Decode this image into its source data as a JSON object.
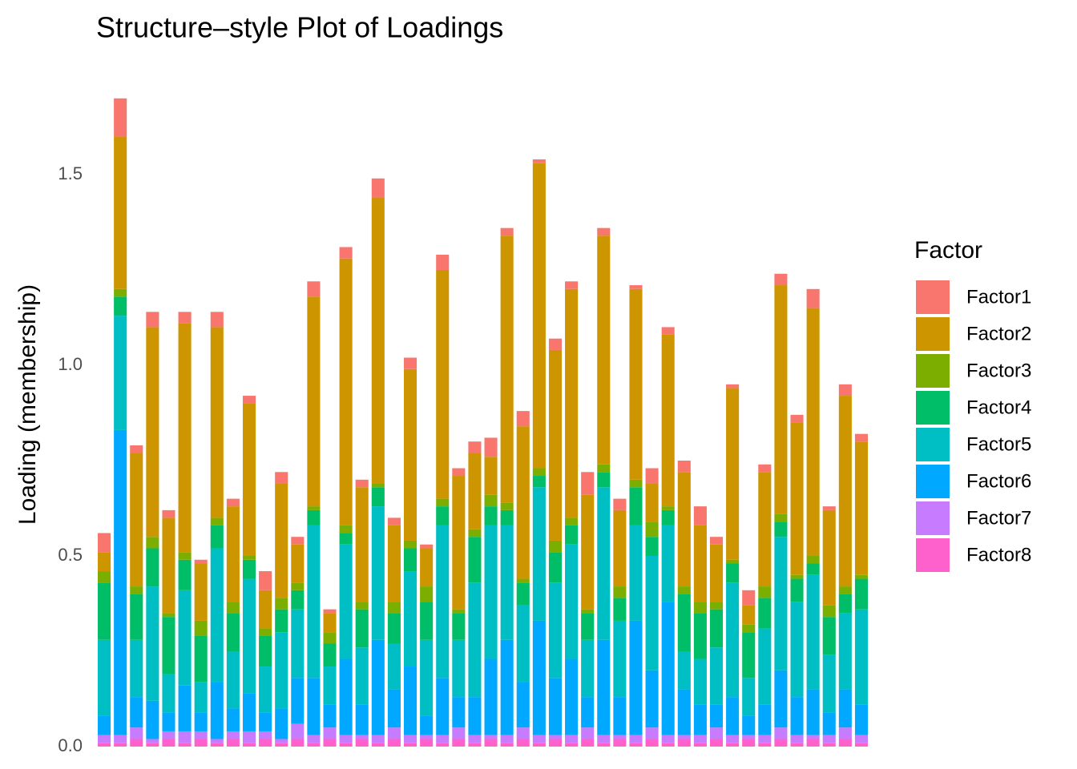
{
  "chart_data": {
    "type": "stacked_bar",
    "title": "Structure–style Plot of Loadings",
    "y_label": "Loading (membership)",
    "legend_title": "Factor",
    "legend_position": "right",
    "grid": false,
    "categories": [
      null,
      null,
      null,
      null,
      null,
      null,
      null,
      null,
      null,
      null,
      null,
      null,
      null,
      null,
      null,
      null,
      null,
      null,
      null,
      null,
      null,
      null,
      null,
      null,
      null,
      null,
      null,
      null,
      null,
      null,
      null,
      null,
      null,
      null,
      null,
      null,
      null,
      null,
      null,
      null,
      null,
      null,
      null,
      null,
      null,
      null,
      null,
      null
    ],
    "ylim": [
      0,
      1.75
    ],
    "yticks": [
      {
        "value": 0,
        "label": "0.0"
      },
      0.5,
      {
        "value": 1,
        "label": "1.0"
      },
      1.5
    ],
    "series": [
      {
        "name": "Factor1",
        "color": "#F8766D",
        "values": [
          0.05,
          0.1,
          0.02,
          0.04,
          0.02,
          0.03,
          0.01,
          0.04,
          0.02,
          0.02,
          0.05,
          0.03,
          0.02,
          0.04,
          0.01,
          0.03,
          0.02,
          0.05,
          0.02,
          0.03,
          0.01,
          0.04,
          0.02,
          0.03,
          0.05,
          0.02,
          0.04,
          0.01,
          0.03,
          0.02,
          0.06,
          0.02,
          0.03,
          0.01,
          0.04,
          0.02,
          0.03,
          0.05,
          0.02,
          0.01,
          0.04,
          0.02,
          0.03,
          0.02,
          0.05,
          0.01,
          0.03,
          0.02
        ]
      },
      {
        "name": "Factor2",
        "color": "#CD9600",
        "values": [
          0.05,
          0.4,
          0.35,
          0.55,
          0.25,
          0.6,
          0.15,
          0.5,
          0.25,
          0.4,
          0.1,
          0.3,
          0.1,
          0.55,
          0.05,
          0.7,
          0.3,
          0.75,
          0.2,
          0.45,
          0.1,
          0.6,
          0.35,
          0.2,
          0.1,
          0.7,
          0.4,
          0.8,
          0.5,
          0.6,
          0.3,
          0.6,
          0.2,
          0.5,
          0.1,
          0.45,
          0.3,
          0.2,
          0.15,
          0.45,
          0.05,
          0.3,
          0.6,
          0.4,
          0.65,
          0.25,
          0.5,
          0.35
        ]
      },
      {
        "name": "Factor3",
        "color": "#7CAE00",
        "values": [
          0.03,
          0.02,
          0.02,
          0.03,
          0.01,
          0.02,
          0.04,
          0.02,
          0.03,
          0.01,
          0.02,
          0.03,
          0.02,
          0.01,
          0.03,
          0.02,
          0.02,
          0.01,
          0.03,
          0.02,
          0.04,
          0.02,
          0.01,
          0.02,
          0.03,
          0.02,
          0.01,
          0.02,
          0.03,
          0.02,
          0.01,
          0.02,
          0.03,
          0.02,
          0.04,
          0.01,
          0.02,
          0.03,
          0.02,
          0.01,
          0.02,
          0.03,
          0.02,
          0.01,
          0.02,
          0.03,
          0.02,
          0.01
        ]
      },
      {
        "name": "Factor4",
        "color": "#00BE67",
        "values": [
          0.15,
          0.05,
          0.12,
          0.1,
          0.15,
          0.08,
          0.12,
          0.06,
          0.1,
          0.05,
          0.08,
          0.06,
          0.05,
          0.04,
          0.06,
          0.03,
          0.1,
          0.05,
          0.08,
          0.06,
          0.1,
          0.05,
          0.07,
          0.12,
          0.05,
          0.04,
          0.06,
          0.03,
          0.08,
          0.05,
          0.07,
          0.04,
          0.06,
          0.1,
          0.05,
          0.04,
          0.15,
          0.12,
          0.1,
          0.05,
          0.12,
          0.08,
          0.04,
          0.06,
          0.03,
          0.1,
          0.05,
          0.08
        ]
      },
      {
        "name": "Factor5",
        "color": "#00BFC4",
        "values": [
          0.2,
          0.3,
          0.15,
          0.3,
          0.1,
          0.25,
          0.08,
          0.35,
          0.15,
          0.3,
          0.12,
          0.2,
          0.18,
          0.4,
          0.1,
          0.3,
          0.15,
          0.35,
          0.12,
          0.25,
          0.2,
          0.4,
          0.15,
          0.3,
          0.35,
          0.3,
          0.2,
          0.35,
          0.25,
          0.3,
          0.15,
          0.4,
          0.2,
          0.25,
          0.3,
          0.2,
          0.1,
          0.12,
          0.15,
          0.3,
          0.1,
          0.2,
          0.35,
          0.25,
          0.3,
          0.15,
          0.2,
          0.25
        ]
      },
      {
        "name": "Factor6",
        "color": "#00A9FF",
        "values": [
          0.05,
          0.8,
          0.08,
          0.1,
          0.05,
          0.12,
          0.05,
          0.15,
          0.06,
          0.1,
          0.05,
          0.08,
          0.12,
          0.15,
          0.06,
          0.2,
          0.08,
          0.25,
          0.1,
          0.18,
          0.05,
          0.15,
          0.08,
          0.1,
          0.2,
          0.25,
          0.12,
          0.3,
          0.15,
          0.2,
          0.08,
          0.25,
          0.1,
          0.3,
          0.15,
          0.35,
          0.12,
          0.08,
          0.06,
          0.1,
          0.05,
          0.08,
          0.15,
          0.1,
          0.12,
          0.06,
          0.1,
          0.08
        ]
      },
      {
        "name": "Factor7",
        "color": "#C77CFF",
        "values": [
          0.02,
          0.02,
          0.03,
          0.01,
          0.02,
          0.03,
          0.02,
          0.01,
          0.02,
          0.03,
          0.02,
          0.01,
          0.04,
          0.02,
          0.03,
          0.02,
          0.01,
          0.02,
          0.03,
          0.02,
          0.01,
          0.02,
          0.03,
          0.02,
          0.01,
          0.02,
          0.03,
          0.02,
          0.01,
          0.02,
          0.03,
          0.02,
          0.01,
          0.02,
          0.03,
          0.02,
          0.01,
          0.02,
          0.03,
          0.02,
          0.01,
          0.02,
          0.03,
          0.02,
          0.01,
          0.02,
          0.03,
          0.02
        ]
      },
      {
        "name": "Factor8",
        "color": "#FF61CC",
        "values": [
          0.01,
          0.01,
          0.02,
          0.01,
          0.02,
          0.01,
          0.02,
          0.01,
          0.02,
          0.01,
          0.02,
          0.01,
          0.02,
          0.01,
          0.02,
          0.01,
          0.02,
          0.01,
          0.02,
          0.01,
          0.02,
          0.01,
          0.02,
          0.01,
          0.02,
          0.01,
          0.02,
          0.01,
          0.02,
          0.01,
          0.02,
          0.01,
          0.02,
          0.01,
          0.02,
          0.01,
          0.02,
          0.01,
          0.02,
          0.01,
          0.02,
          0.01,
          0.02,
          0.01,
          0.02,
          0.01,
          0.02,
          0.01
        ]
      }
    ]
  }
}
